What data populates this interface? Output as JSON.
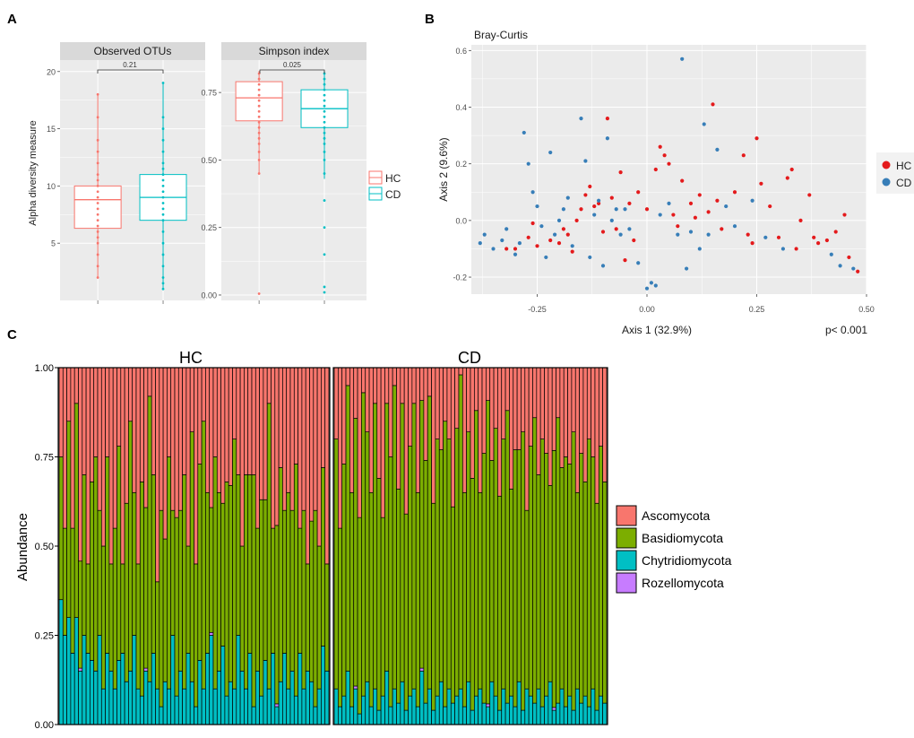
{
  "colors": {
    "hc": "#f8766d",
    "cd": "#00bfc4",
    "hc_point": "#e41a1c",
    "cd_point": "#377eb8",
    "panel_bg": "#ebebeb",
    "grid": "#ffffff",
    "ascomycota": "#f8766d",
    "basidiomycota": "#7cae00",
    "chytridiomycota": "#00bfc4",
    "rozellomycota": "#c77cff"
  },
  "panels": {
    "a": "A",
    "b": "B",
    "c": "C"
  },
  "chart_data": [
    {
      "id": "observed-otus",
      "type": "box",
      "title": "Observed OTUs",
      "ylabel": "Alpha diversity measure",
      "ylim": [
        0,
        21
      ],
      "yticks": [
        5,
        10,
        15,
        20
      ],
      "yticklabels": [
        "5",
        "10",
        "15",
        "20"
      ],
      "pvalue": "0.21",
      "groups": [
        {
          "name": "HC",
          "whisker_low": 2,
          "q1": 6.3,
          "median": 8.8,
          "q3": 10,
          "whisker_high": 18,
          "points": [
            2,
            3,
            4,
            5,
            5.5,
            6,
            6.5,
            7,
            7.5,
            8,
            8.5,
            9,
            9.5,
            10,
            10.5,
            11,
            12,
            13,
            14,
            16,
            18
          ]
        },
        {
          "name": "CD",
          "whisker_low": 1,
          "q1": 7,
          "median": 9,
          "q3": 11,
          "whisker_high": 19,
          "points": [
            1,
            1.5,
            2,
            3,
            4,
            5,
            6,
            7,
            7.5,
            8,
            8.5,
            9,
            9.5,
            10,
            10.5,
            11,
            11.5,
            12,
            13,
            14,
            15,
            16,
            19
          ]
        }
      ]
    },
    {
      "id": "simpson-index",
      "type": "box",
      "title": "Simpson index",
      "ylim": [
        -0.02,
        0.87
      ],
      "yticks": [
        0,
        0.25,
        0.5,
        0.75
      ],
      "yticklabels": [
        "0.00",
        "0.25",
        "0.50",
        "0.75"
      ],
      "pvalue": "0.025",
      "groups": [
        {
          "name": "HC",
          "whisker_low": 0.45,
          "q1": 0.645,
          "median": 0.73,
          "q3": 0.79,
          "whisker_high": 0.83,
          "points": [
            0.005,
            0.45,
            0.5,
            0.53,
            0.56,
            0.58,
            0.6,
            0.62,
            0.64,
            0.66,
            0.68,
            0.7,
            0.72,
            0.74,
            0.76,
            0.78,
            0.8,
            0.82
          ]
        },
        {
          "name": "CD",
          "whisker_low": 0.43,
          "q1": 0.62,
          "median": 0.69,
          "q3": 0.76,
          "whisker_high": 0.83,
          "points": [
            0.01,
            0.03,
            0.15,
            0.25,
            0.35,
            0.45,
            0.5,
            0.53,
            0.56,
            0.58,
            0.6,
            0.62,
            0.64,
            0.66,
            0.68,
            0.7,
            0.72,
            0.74,
            0.76,
            0.78,
            0.8,
            0.82
          ]
        }
      ]
    },
    {
      "id": "bray-curtis",
      "type": "scatter",
      "title": "Bray-Curtis",
      "xlabel": "Axis 1 (32.9%)",
      "ylabel": "Axis 2 (9.6%)",
      "xlim": [
        -0.4,
        0.5
      ],
      "ylim": [
        -0.26,
        0.62
      ],
      "xticks": [
        -0.25,
        0,
        0.25,
        0.5
      ],
      "xticklabels": [
        "-0.25",
        "0.00",
        "0.25",
        "0.50"
      ],
      "yticks": [
        -0.2,
        0,
        0.2,
        0.4,
        0.6
      ],
      "yticklabels": [
        "-0.2",
        "0.0",
        "0.2",
        "0.4",
        "0.6"
      ],
      "annotation": "p< 0.001",
      "legend": [
        "HC",
        "CD"
      ],
      "series": [
        {
          "name": "HC",
          "points": [
            [
              -0.32,
              -0.1
            ],
            [
              -0.3,
              -0.1
            ],
            [
              -0.27,
              -0.06
            ],
            [
              -0.26,
              -0.01
            ],
            [
              -0.25,
              -0.09
            ],
            [
              -0.22,
              -0.07
            ],
            [
              -0.2,
              -0.08
            ],
            [
              -0.19,
              -0.03
            ],
            [
              -0.18,
              -0.05
            ],
            [
              -0.17,
              -0.11
            ],
            [
              -0.16,
              0.0
            ],
            [
              -0.15,
              0.04
            ],
            [
              -0.14,
              0.09
            ],
            [
              -0.13,
              0.12
            ],
            [
              -0.12,
              0.05
            ],
            [
              -0.11,
              0.06
            ],
            [
              -0.1,
              -0.04
            ],
            [
              -0.09,
              0.36
            ],
            [
              -0.08,
              0.08
            ],
            [
              -0.07,
              -0.03
            ],
            [
              -0.06,
              0.17
            ],
            [
              -0.05,
              -0.14
            ],
            [
              -0.04,
              0.06
            ],
            [
              -0.03,
              -0.07
            ],
            [
              -0.02,
              0.1
            ],
            [
              0.0,
              0.04
            ],
            [
              0.02,
              0.18
            ],
            [
              0.03,
              0.26
            ],
            [
              0.04,
              0.23
            ],
            [
              0.05,
              0.2
            ],
            [
              0.06,
              0.02
            ],
            [
              0.07,
              -0.02
            ],
            [
              0.08,
              0.14
            ],
            [
              0.1,
              0.06
            ],
            [
              0.11,
              0.01
            ],
            [
              0.12,
              0.09
            ],
            [
              0.14,
              0.03
            ],
            [
              0.15,
              0.41
            ],
            [
              0.16,
              0.07
            ],
            [
              0.17,
              -0.03
            ],
            [
              0.2,
              0.1
            ],
            [
              0.22,
              0.23
            ],
            [
              0.23,
              -0.05
            ],
            [
              0.24,
              -0.08
            ],
            [
              0.25,
              0.29
            ],
            [
              0.26,
              0.13
            ],
            [
              0.28,
              0.05
            ],
            [
              0.3,
              -0.06
            ],
            [
              0.32,
              0.15
            ],
            [
              0.33,
              0.18
            ],
            [
              0.34,
              -0.1
            ],
            [
              0.35,
              0.0
            ],
            [
              0.37,
              0.09
            ],
            [
              0.38,
              -0.06
            ],
            [
              0.39,
              -0.08
            ],
            [
              0.41,
              -0.07
            ],
            [
              0.43,
              -0.04
            ],
            [
              0.45,
              0.02
            ],
            [
              0.46,
              -0.13
            ],
            [
              0.48,
              -0.18
            ]
          ]
        },
        {
          "name": "CD",
          "points": [
            [
              -0.38,
              -0.08
            ],
            [
              -0.37,
              -0.05
            ],
            [
              -0.35,
              -0.1
            ],
            [
              -0.33,
              -0.07
            ],
            [
              -0.32,
              -0.03
            ],
            [
              -0.3,
              -0.12
            ],
            [
              -0.29,
              -0.08
            ],
            [
              -0.28,
              0.31
            ],
            [
              -0.27,
              0.2
            ],
            [
              -0.26,
              0.1
            ],
            [
              -0.25,
              0.05
            ],
            [
              -0.24,
              -0.02
            ],
            [
              -0.23,
              -0.13
            ],
            [
              -0.22,
              0.24
            ],
            [
              -0.21,
              -0.05
            ],
            [
              -0.2,
              0.0
            ],
            [
              -0.19,
              0.04
            ],
            [
              -0.18,
              0.08
            ],
            [
              -0.17,
              -0.09
            ],
            [
              -0.15,
              0.36
            ],
            [
              -0.14,
              0.21
            ],
            [
              -0.13,
              -0.13
            ],
            [
              -0.12,
              0.02
            ],
            [
              -0.11,
              0.07
            ],
            [
              -0.1,
              -0.16
            ],
            [
              -0.09,
              0.29
            ],
            [
              -0.08,
              0.0
            ],
            [
              -0.07,
              0.04
            ],
            [
              -0.06,
              -0.05
            ],
            [
              -0.05,
              0.04
            ],
            [
              -0.04,
              -0.03
            ],
            [
              -0.02,
              -0.15
            ],
            [
              0.0,
              -0.24
            ],
            [
              0.01,
              -0.22
            ],
            [
              0.02,
              -0.23
            ],
            [
              0.03,
              0.02
            ],
            [
              0.05,
              0.06
            ],
            [
              0.07,
              -0.05
            ],
            [
              0.08,
              0.57
            ],
            [
              0.09,
              -0.17
            ],
            [
              0.1,
              -0.04
            ],
            [
              0.12,
              -0.1
            ],
            [
              0.13,
              0.34
            ],
            [
              0.14,
              -0.05
            ],
            [
              0.16,
              0.25
            ],
            [
              0.18,
              0.05
            ],
            [
              0.2,
              -0.02
            ],
            [
              0.24,
              0.07
            ],
            [
              0.27,
              -0.06
            ],
            [
              0.31,
              -0.1
            ],
            [
              0.42,
              -0.12
            ],
            [
              0.44,
              -0.16
            ],
            [
              0.47,
              -0.17
            ]
          ]
        }
      ]
    },
    {
      "id": "abundance",
      "type": "stacked-bar",
      "ylabel": "Abundance",
      "ylim": [
        0,
        1
      ],
      "yticks": [
        0,
        0.25,
        0.5,
        0.75,
        1.0
      ],
      "yticklabels": [
        "0.00",
        "0.25",
        "0.50",
        "0.75",
        "1.00"
      ],
      "legend": [
        "Ascomycota",
        "Basidiomycota",
        "Chytridiomycota",
        "Rozellomycota"
      ],
      "facets": [
        {
          "name": "HC",
          "basidiomycota": [
            0.4,
            0.3,
            0.55,
            0.35,
            0.6,
            0.3,
            0.45,
            0.25,
            0.5,
            0.6,
            0.35,
            0.4,
            0.55,
            0.3,
            0.45,
            0.6,
            0.25,
            0.5,
            0.7,
            0.4,
            0.35,
            0.6,
            0.45,
            0.8,
            0.5,
            0.3,
            0.55,
            0.4,
            0.65,
            0.35,
            0.5,
            0.45,
            0.6,
            0.3,
            0.7,
            0.4,
            0.55,
            0.75,
            0.45,
            0.35,
            0.65,
            0.5,
            0.4,
            0.6,
            0.55,
            0.7,
            0.45,
            0.35,
            0.6,
            0.5,
            0.65,
            0.4,
            0.55,
            0.45,
            0.8,
            0.35,
            0.5,
            0.6,
            0.4,
            0.55,
            0.45,
            0.65,
            0.35,
            0.5,
            0.3,
            0.45,
            0.55,
            0.4,
            0.5,
            0.3
          ],
          "chytridiomycota": [
            0.35,
            0.25,
            0.3,
            0.2,
            0.3,
            0.15,
            0.25,
            0.2,
            0.18,
            0.15,
            0.25,
            0.1,
            0.2,
            0.15,
            0.1,
            0.18,
            0.2,
            0.12,
            0.15,
            0.25,
            0.1,
            0.08,
            0.15,
            0.12,
            0.2,
            0.1,
            0.05,
            0.12,
            0.1,
            0.25,
            0.08,
            0.15,
            0.1,
            0.2,
            0.12,
            0.05,
            0.18,
            0.1,
            0.2,
            0.25,
            0.1,
            0.15,
            0.22,
            0.08,
            0.12,
            0.1,
            0.25,
            0.15,
            0.1,
            0.2,
            0.05,
            0.15,
            0.08,
            0.18,
            0.1,
            0.2,
            0.05,
            0.12,
            0.2,
            0.1,
            0.15,
            0.08,
            0.2,
            0.1,
            0.15,
            0.12,
            0.05,
            0.1,
            0.22,
            0.15
          ]
        },
        {
          "name": "CD",
          "basidiomycota": [
            0.7,
            0.5,
            0.65,
            0.8,
            0.6,
            0.75,
            0.55,
            0.85,
            0.7,
            0.6,
            0.8,
            0.65,
            0.5,
            0.75,
            0.7,
            0.85,
            0.6,
            0.78,
            0.55,
            0.7,
            0.8,
            0.6,
            0.75,
            0.68,
            0.82,
            0.58,
            0.72,
            0.65,
            0.8,
            0.7,
            0.55,
            0.75,
            0.88,
            0.6,
            0.7,
            0.65,
            0.8,
            0.55,
            0.7,
            0.85,
            0.62,
            0.75,
            0.6,
            0.7,
            0.82,
            0.58,
            0.72,
            0.65,
            0.78,
            0.5,
            0.7,
            0.8,
            0.6,
            0.75,
            0.68,
            0.55,
            0.72,
            0.8,
            0.62,
            0.7,
            0.65,
            0.78,
            0.55,
            0.7,
            0.6,
            0.75,
            0.65,
            0.58,
            0.7,
            0.62
          ],
          "chytridiomycota": [
            0.1,
            0.05,
            0.08,
            0.15,
            0.05,
            0.1,
            0.03,
            0.08,
            0.12,
            0.05,
            0.1,
            0.04,
            0.08,
            0.15,
            0.05,
            0.1,
            0.06,
            0.12,
            0.04,
            0.08,
            0.1,
            0.05,
            0.15,
            0.06,
            0.1,
            0.04,
            0.08,
            0.12,
            0.05,
            0.1,
            0.06,
            0.08,
            0.1,
            0.05,
            0.12,
            0.04,
            0.08,
            0.1,
            0.06,
            0.05,
            0.12,
            0.08,
            0.04,
            0.1,
            0.06,
            0.08,
            0.05,
            0.12,
            0.04,
            0.1,
            0.08,
            0.06,
            0.1,
            0.05,
            0.08,
            0.12,
            0.04,
            0.06,
            0.1,
            0.05,
            0.08,
            0.04,
            0.1,
            0.06,
            0.08,
            0.05,
            0.1,
            0.04,
            0.08,
            0.06
          ]
        }
      ]
    }
  ]
}
